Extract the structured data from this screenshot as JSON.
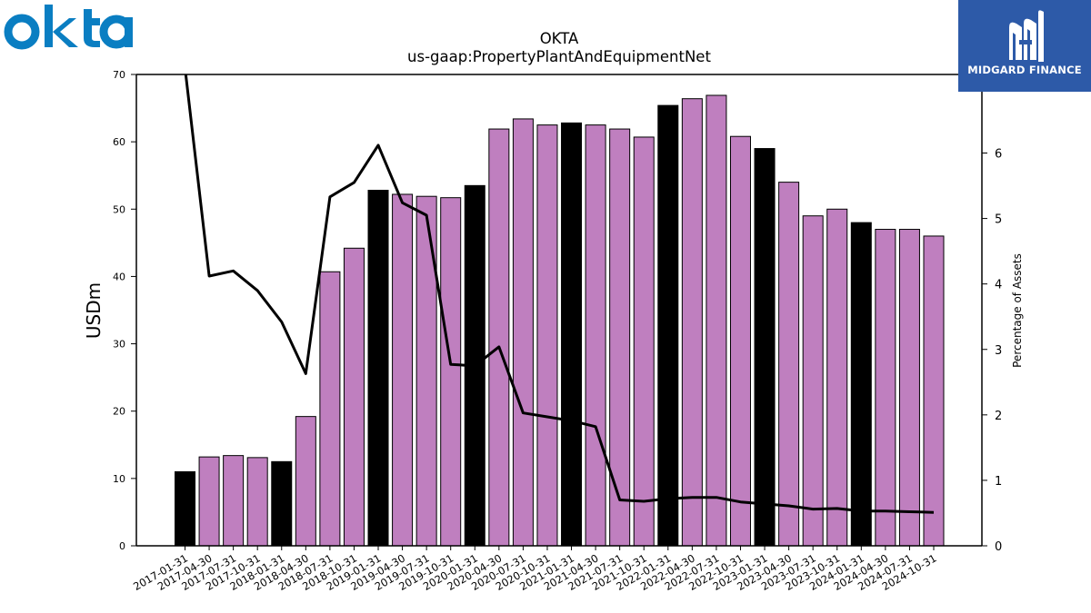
{
  "brand": {
    "company_logo_text": "okta",
    "company_logo_icon": "okta-wordmark",
    "company_color": "#0a7ec2",
    "publisher_name": "MIDGARD FINANCE",
    "publisher_logo_icon": "midgard-m-mark",
    "publisher_bg": "#2d5aa8"
  },
  "chart_data": {
    "type": "bar",
    "title": "OKTA",
    "subtitle": "us-gaap:PropertyPlantAndEquipmentNet",
    "ylabel": "USDm",
    "y2label": "Percentage of Assets",
    "ylim": [
      0,
      70
    ],
    "y2lim": [
      0,
      7.2
    ],
    "yticks": [
      0,
      10,
      20,
      30,
      40,
      50,
      60,
      70
    ],
    "y2ticks": [
      0,
      1,
      2,
      3,
      4,
      5,
      6
    ],
    "categories": [
      "2017-01-31",
      "2017-04-30",
      "2017-07-31",
      "2017-10-31",
      "2018-01-31",
      "2018-04-30",
      "2018-07-31",
      "2018-10-31",
      "2019-01-31",
      "2019-04-30",
      "2019-07-31",
      "2019-10-31",
      "2020-01-31",
      "2020-04-30",
      "2020-07-31",
      "2020-10-31",
      "2021-01-31",
      "2021-04-30",
      "2021-07-31",
      "2021-10-31",
      "2022-01-31",
      "2022-04-30",
      "2022-07-31",
      "2022-10-31",
      "2023-01-31",
      "2023-04-30",
      "2023-07-31",
      "2023-10-31",
      "2024-01-31",
      "2024-04-30",
      "2024-07-31",
      "2024-10-31"
    ],
    "series": [
      {
        "type": "bar",
        "values": [
          11.0,
          13.2,
          13.4,
          13.1,
          12.5,
          19.2,
          40.7,
          44.2,
          52.8,
          52.2,
          51.9,
          51.7,
          53.5,
          61.9,
          63.4,
          62.5,
          62.8,
          62.5,
          61.9,
          60.7,
          65.4,
          66.4,
          66.9,
          60.8,
          59.0,
          54.0,
          49.0,
          50.0,
          48.0,
          47.0,
          47.0,
          46.0
        ],
        "fiscal_year_end_color": "#000000",
        "quarter_color": "#bf7fbf"
      },
      {
        "type": "line",
        "axis": "right",
        "values": [
          7.3,
          4.12,
          4.2,
          3.9,
          3.42,
          2.63,
          5.33,
          5.55,
          6.12,
          5.24,
          5.05,
          2.77,
          2.75,
          3.04,
          2.03,
          1.97,
          1.91,
          1.82,
          0.7,
          0.68,
          0.72,
          0.74,
          0.74,
          0.67,
          0.64,
          0.61,
          0.56,
          0.57,
          0.53,
          0.53,
          0.52,
          0.51
        ],
        "color": "#000000"
      }
    ],
    "grid": false,
    "legend": "none"
  }
}
